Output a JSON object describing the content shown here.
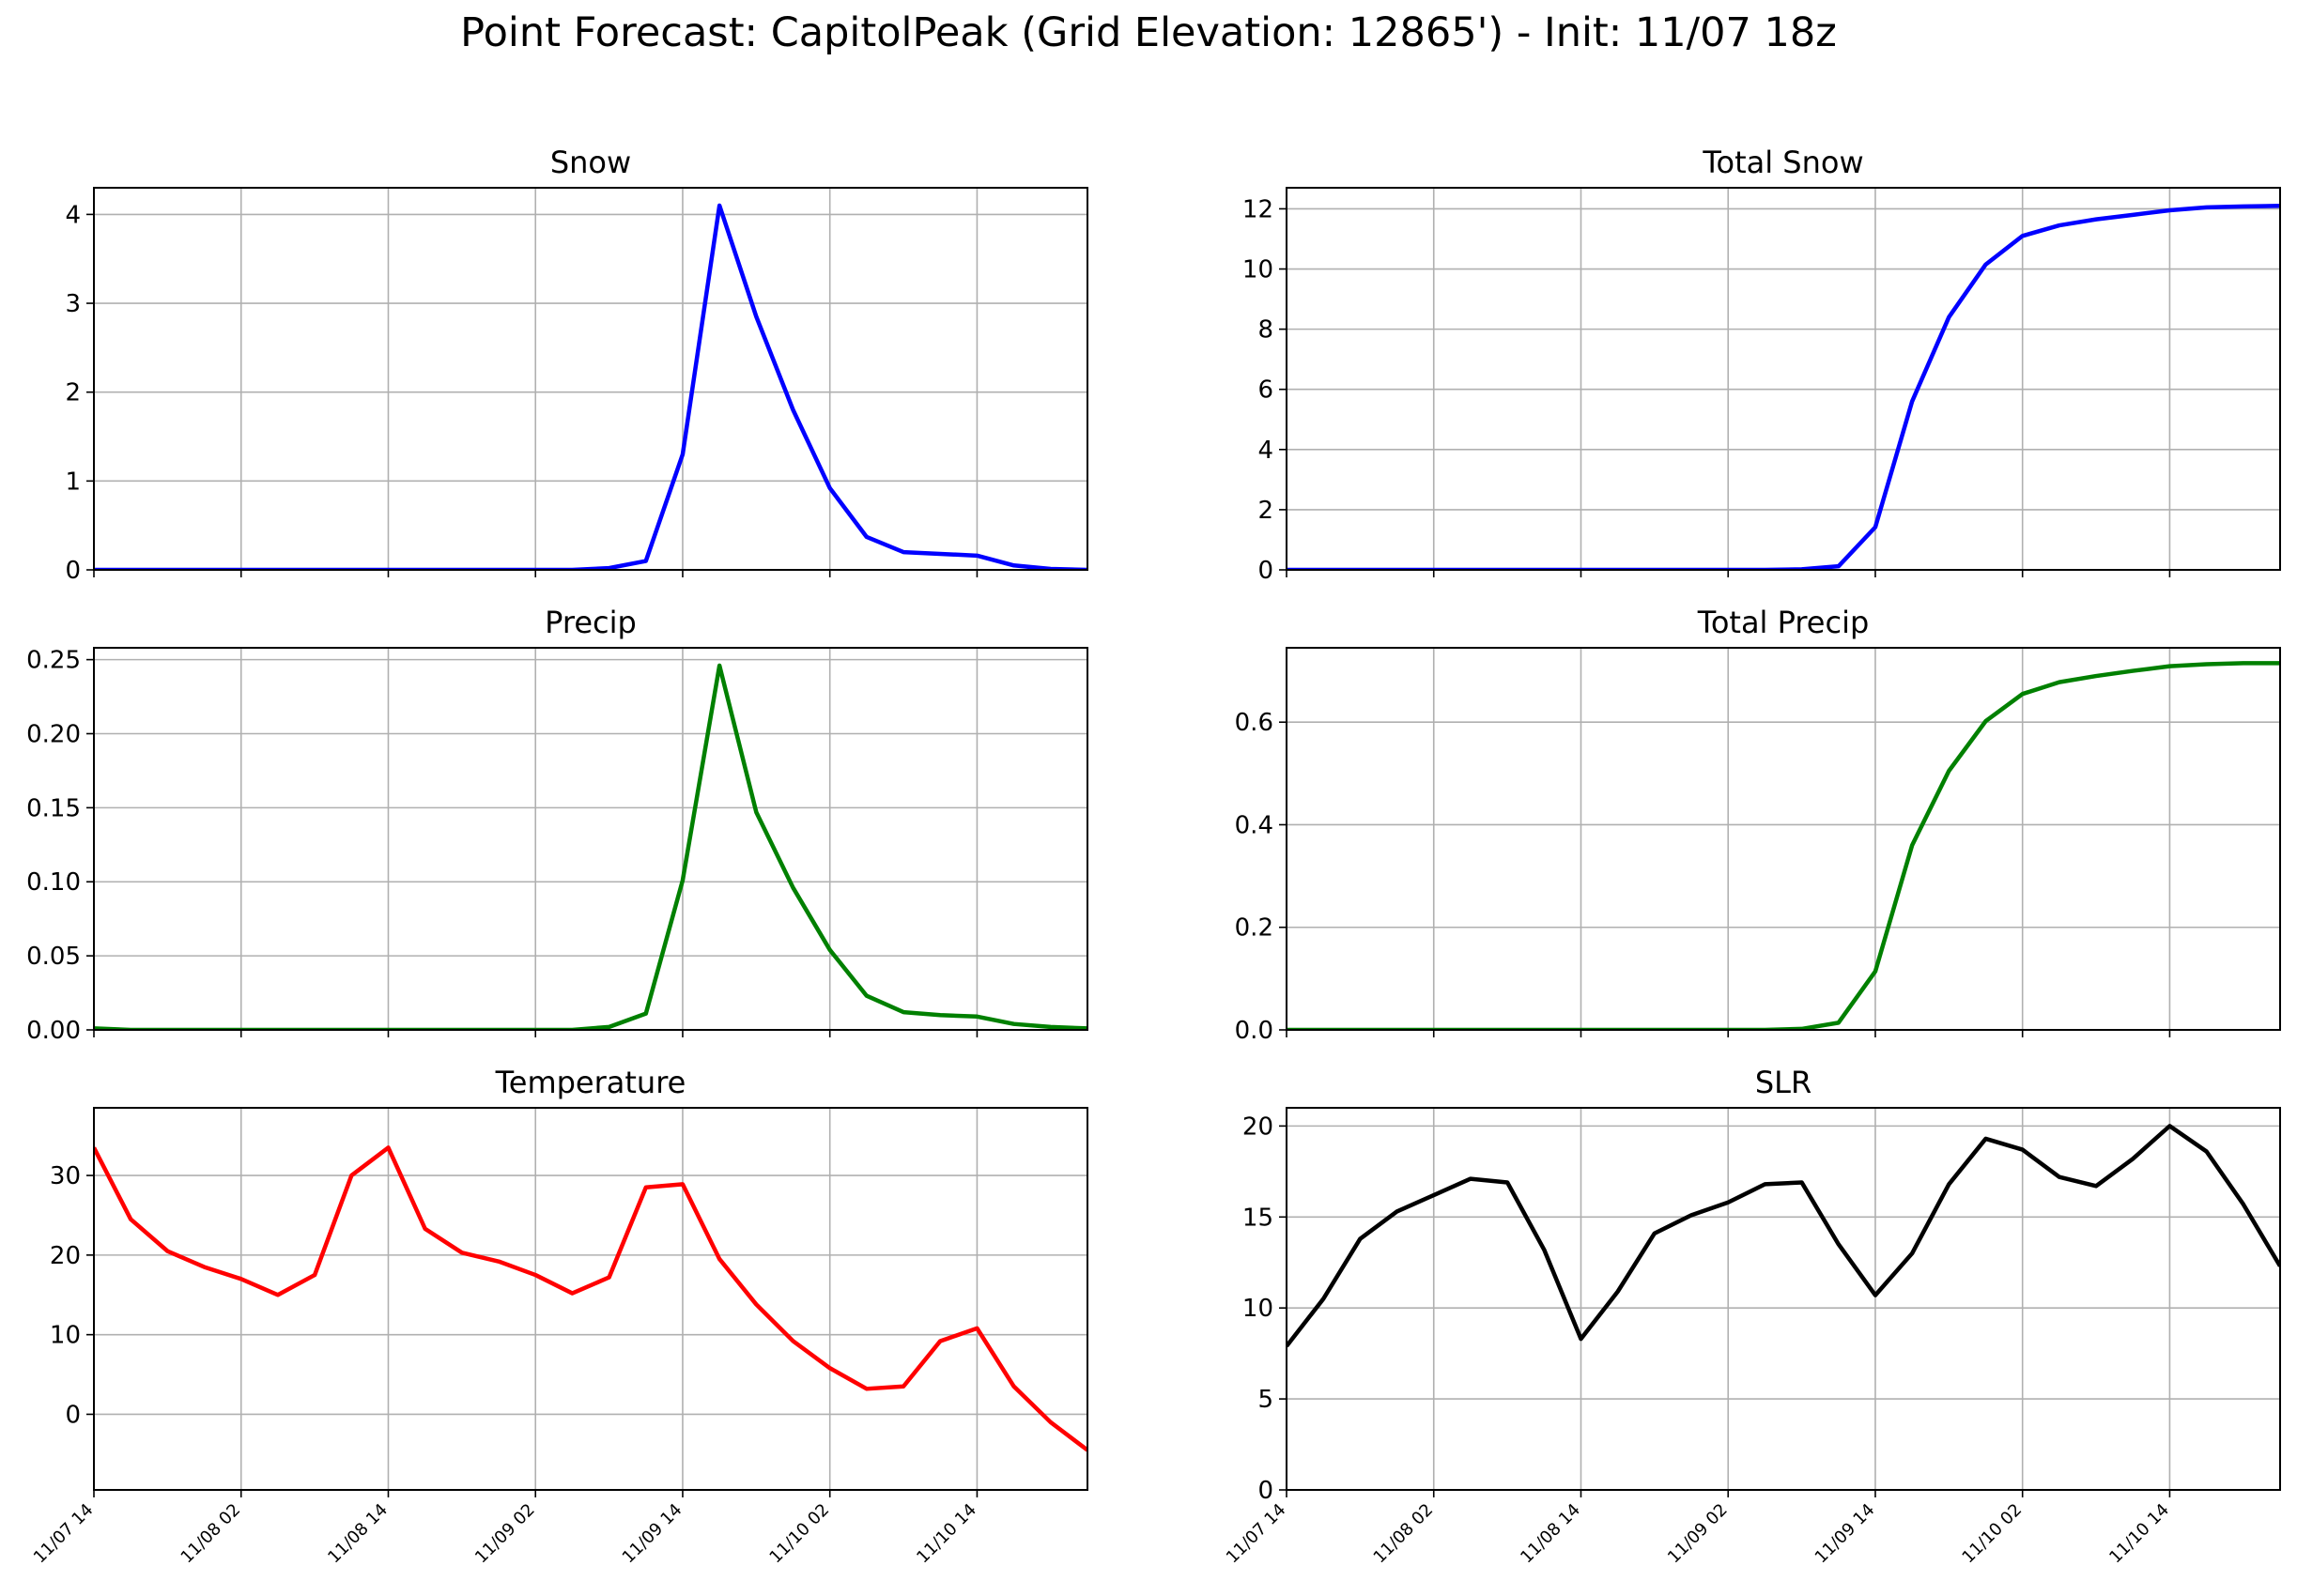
{
  "suptitle": "Point Forecast: CapitolPeak (Grid Elevation: 12865') - Init: 11/07 18z",
  "x_tick_labels": [
    "11/07 14",
    "11/08 02",
    "11/08 14",
    "11/09 02",
    "11/09 14",
    "11/10 02",
    "11/10 14"
  ],
  "chart_data": [
    {
      "type": "line",
      "title": "Snow",
      "color": "#0000ff",
      "ylim": [
        0,
        4.3
      ],
      "yticks": [
        0,
        1,
        2,
        3,
        4
      ],
      "x_hours": [
        0,
        3,
        6,
        9,
        12,
        15,
        18,
        21,
        24,
        27,
        30,
        33,
        36,
        39,
        42,
        45,
        48,
        51,
        54,
        57,
        60,
        63,
        66,
        69,
        72,
        75,
        78,
        81
      ],
      "values": [
        0,
        0,
        0,
        0,
        0,
        0,
        0,
        0,
        0,
        0,
        0,
        0,
        0,
        0,
        0.02,
        0.1,
        1.3,
        4.1,
        2.85,
        1.8,
        0.92,
        0.37,
        0.2,
        0.18,
        0.16,
        0.05,
        0.01,
        0
      ],
      "grid": true
    },
    {
      "type": "line",
      "title": "Total Snow",
      "color": "#0000ff",
      "ylim": [
        0,
        12.7
      ],
      "yticks": [
        0,
        2,
        4,
        6,
        8,
        10,
        12
      ],
      "x_hours": [
        0,
        3,
        6,
        9,
        12,
        15,
        18,
        21,
        24,
        27,
        30,
        33,
        36,
        39,
        42,
        45,
        48,
        51,
        54,
        57,
        60,
        63,
        66,
        69,
        72,
        75,
        78,
        81
      ],
      "values": [
        0,
        0,
        0,
        0,
        0,
        0,
        0,
        0,
        0,
        0,
        0,
        0,
        0,
        0,
        0.02,
        0.12,
        1.42,
        5.6,
        8.4,
        10.15,
        11.1,
        11.45,
        11.65,
        11.8,
        11.95,
        12.05,
        12.08,
        12.1
      ],
      "grid": true
    },
    {
      "type": "line",
      "title": "Precip",
      "color": "#008000",
      "ylim": [
        0,
        0.258
      ],
      "yticks": [
        0,
        0.05,
        0.1,
        0.15,
        0.2,
        0.25
      ],
      "ytick_labels": [
        "0.00",
        "0.05",
        "0.10",
        "0.15",
        "0.20",
        "0.25"
      ],
      "x_hours": [
        0,
        3,
        6,
        9,
        12,
        15,
        18,
        21,
        24,
        27,
        30,
        33,
        36,
        39,
        42,
        45,
        48,
        51,
        54,
        57,
        60,
        63,
        66,
        69,
        72,
        75,
        78,
        81
      ],
      "values": [
        0.001,
        0,
        0,
        0,
        0,
        0,
        0,
        0,
        0,
        0,
        0,
        0,
        0,
        0,
        0.002,
        0.011,
        0.101,
        0.246,
        0.147,
        0.096,
        0.054,
        0.023,
        0.012,
        0.01,
        0.009,
        0.004,
        0.002,
        0.001
      ],
      "grid": true
    },
    {
      "type": "line",
      "title": "Total Precip",
      "color": "#008000",
      "ylim": [
        0,
        0.745
      ],
      "yticks": [
        0,
        0.2,
        0.4,
        0.6
      ],
      "ytick_labels": [
        "0.0",
        "0.2",
        "0.4",
        "0.6"
      ],
      "x_hours": [
        0,
        3,
        6,
        9,
        12,
        15,
        18,
        21,
        24,
        27,
        30,
        33,
        36,
        39,
        42,
        45,
        48,
        51,
        54,
        57,
        60,
        63,
        66,
        69,
        72,
        75,
        78,
        81
      ],
      "values": [
        0,
        0,
        0,
        0,
        0,
        0,
        0,
        0,
        0,
        0,
        0,
        0,
        0,
        0,
        0.002,
        0.014,
        0.114,
        0.36,
        0.505,
        0.602,
        0.655,
        0.678,
        0.69,
        0.7,
        0.709,
        0.713,
        0.715,
        0.715
      ],
      "grid": true
    },
    {
      "type": "line",
      "title": "Temperature",
      "color": "#ff0000",
      "ylim": [
        -9.5,
        38.5
      ],
      "yticks": [
        0,
        10,
        20,
        30
      ],
      "x_hours": [
        0,
        3,
        6,
        9,
        12,
        15,
        18,
        21,
        24,
        27,
        30,
        33,
        36,
        39,
        42,
        45,
        48,
        51,
        54,
        57,
        60,
        63,
        66,
        69,
        72,
        75,
        78,
        81
      ],
      "values": [
        33.5,
        24.5,
        20.5,
        18.5,
        17,
        15,
        17.5,
        30,
        33.5,
        23.3,
        20.3,
        19.2,
        17.5,
        15.2,
        17.2,
        28.5,
        28.9,
        19.5,
        13.8,
        9.2,
        5.8,
        3.2,
        3.5,
        9.2,
        10.8,
        3.5,
        -1,
        -4.5
      ],
      "grid": true
    },
    {
      "type": "line",
      "title": "SLR",
      "color": "#000000",
      "ylim": [
        0,
        21
      ],
      "yticks": [
        0,
        5,
        10,
        15,
        20
      ],
      "x_hours": [
        0,
        3,
        6,
        9,
        12,
        15,
        18,
        21,
        24,
        27,
        30,
        33,
        36,
        39,
        42,
        45,
        48,
        51,
        54,
        57,
        60,
        63,
        66,
        69,
        72,
        75,
        78,
        81
      ],
      "values": [
        7.9,
        10.5,
        13.8,
        15.3,
        16.2,
        17.1,
        16.9,
        13.2,
        8.3,
        10.9,
        14.1,
        15.1,
        15.8,
        16.8,
        16.9,
        13.5,
        10.7,
        13,
        16.8,
        19.3,
        18.7,
        17.2,
        16.7,
        18.2,
        20,
        18.6,
        15.7,
        12.3
      ],
      "grid": true
    }
  ]
}
